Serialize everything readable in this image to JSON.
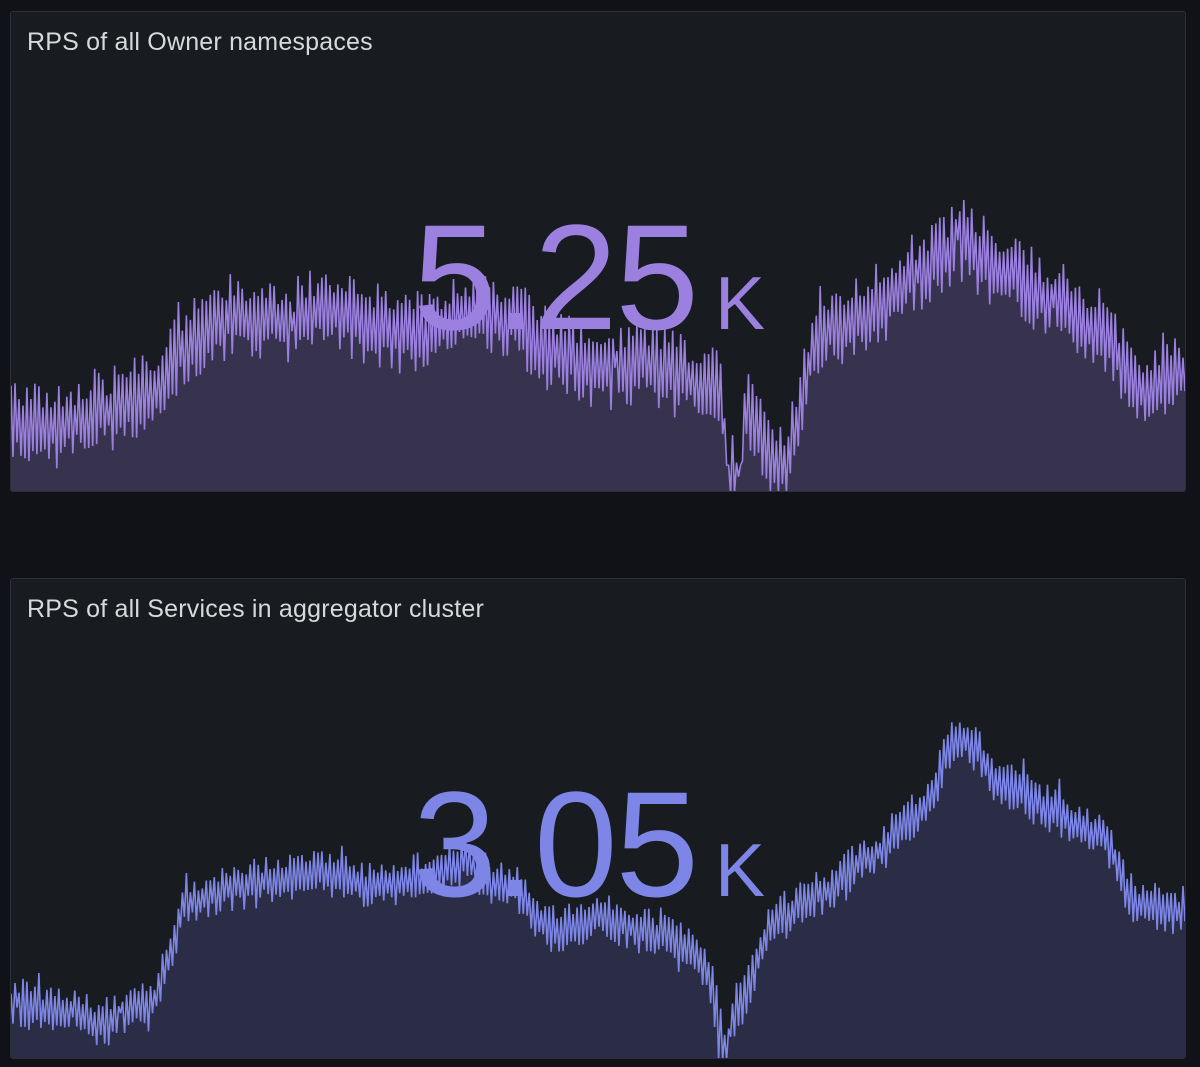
{
  "panels": [
    {
      "title": "RPS of all Owner namespaces",
      "value": "5.25",
      "unit": "K",
      "color": "#9b80e0",
      "fill": "#37334f",
      "chart_data": {
        "type": "area",
        "trend": [
          0.15,
          0.14,
          0.17,
          0.2,
          0.32,
          0.37,
          0.36,
          0.38,
          0.35,
          0.33,
          0.37,
          0.36,
          0.3,
          0.25,
          0.27,
          0.24,
          0.22,
          0.05,
          0.35,
          0.37,
          0.45,
          0.52,
          0.46,
          0.4,
          0.34,
          0.22,
          0.25
        ],
        "jitter": 0.06,
        "dips": [
          {
            "at": 0.615,
            "depth": 0.28
          }
        ]
      }
    },
    {
      "title": "RPS of all Services in aggregator cluster",
      "value": "3.05",
      "unit": "K",
      "color": "#7d86e6",
      "fill": "#2b2d46",
      "chart_data": {
        "type": "area",
        "trend": [
          0.12,
          0.1,
          0.08,
          0.11,
          0.33,
          0.36,
          0.38,
          0.39,
          0.36,
          0.38,
          0.41,
          0.36,
          0.27,
          0.3,
          0.27,
          0.23,
          0.11,
          0.3,
          0.35,
          0.42,
          0.51,
          0.67,
          0.57,
          0.52,
          0.47,
          0.32,
          0.31
        ],
        "jitter": 0.035,
        "dips": [
          {
            "at": 0.605,
            "depth": 0.12
          }
        ]
      }
    }
  ]
}
